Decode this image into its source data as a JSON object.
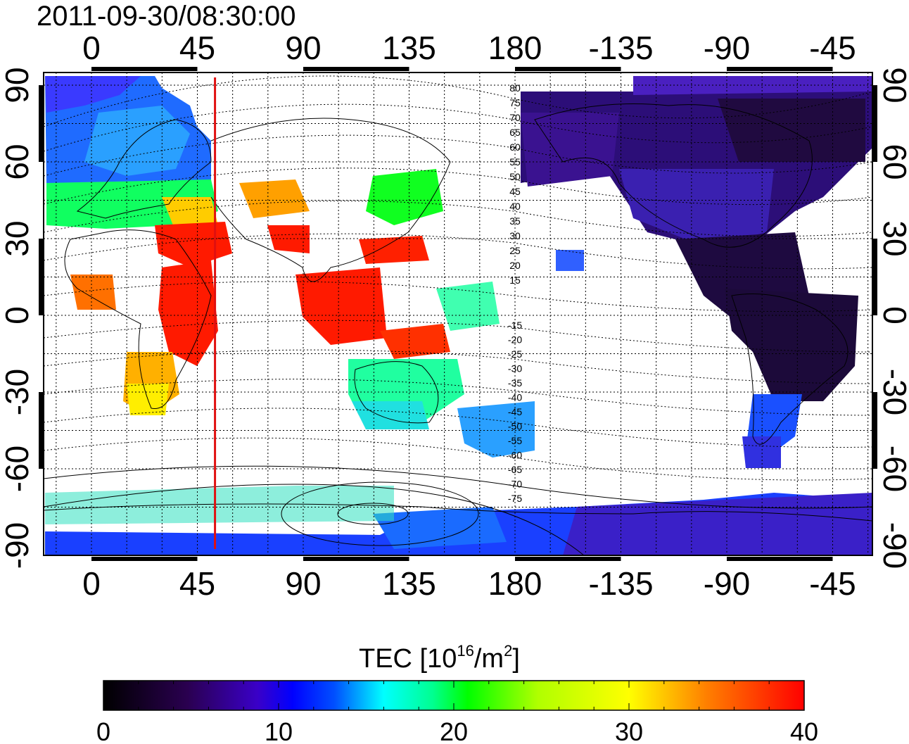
{
  "timestamp": "2011-09-30/08:30:00",
  "lon_tick_labels": [
    "0",
    "45",
    "90",
    "135",
    "180",
    "-135",
    "-90",
    "-45"
  ],
  "lat_tick_labels": [
    "90",
    "60",
    "30",
    "0",
    "-30",
    "-60",
    "-90"
  ],
  "magnetic_contour_labels": [
    "80",
    "75",
    "70",
    "65",
    "60",
    "55",
    "50",
    "45",
    "40",
    "35",
    "30",
    "25",
    "20",
    "15",
    "-15",
    "-20",
    "-25",
    "-30",
    "-35",
    "-40",
    "-45",
    "-50",
    "-55",
    "-60",
    "-65",
    "-70",
    "-75"
  ],
  "colorbar": {
    "title_main": "TEC  [10",
    "title_exp1": "16",
    "title_mid": "/m",
    "title_exp2": "2",
    "title_end": "]",
    "tick_labels": [
      "0",
      "10",
      "20",
      "30",
      "40"
    ],
    "min": 0,
    "max": 40
  },
  "marker_longitude": 52.5,
  "colors": {
    "marker_line": "#e01010",
    "colormap": [
      "#000000",
      "#2a0050",
      "#3a00c8",
      "#0050ff",
      "#00c8ff",
      "#00ffff",
      "#00ff80",
      "#00ff00",
      "#b0ff00",
      "#ffff00",
      "#ff8000",
      "#ff0000"
    ]
  }
}
